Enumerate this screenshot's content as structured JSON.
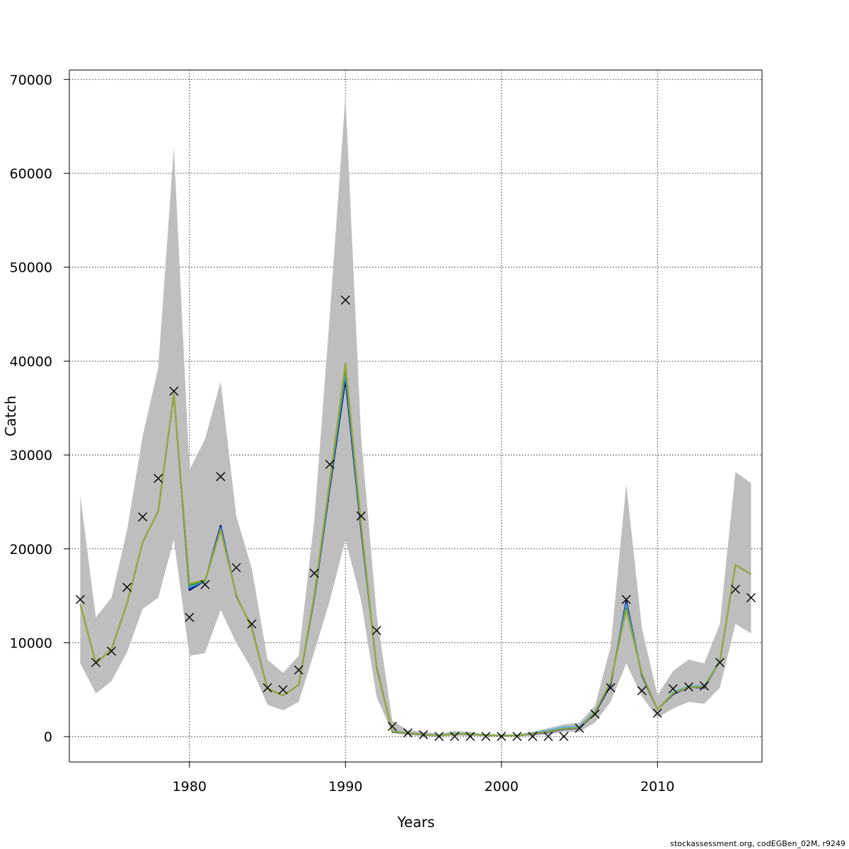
{
  "footer": "stockassessment.org, codEGBen_02M, r9249",
  "colors": {
    "band": "#bebebe",
    "observed_marker": "#000000",
    "grid": "#000000",
    "series": [
      "#000080",
      "#1f78b4",
      "#56b4e9",
      "#2e8b57",
      "#7cae00",
      "#9aa83b"
    ]
  },
  "chart_data": {
    "type": "line",
    "title": "",
    "xlabel": "Years",
    "ylabel": "Catch",
    "xlim": [
      1972.3,
      2016.7
    ],
    "ylim": [
      -2700,
      71000
    ],
    "xticks": [
      1980,
      1990,
      2000,
      2010
    ],
    "yticks": [
      0,
      10000,
      20000,
      30000,
      40000,
      50000,
      60000,
      70000
    ],
    "grid": true,
    "x": [
      1973,
      1974,
      1975,
      1976,
      1977,
      1978,
      1979,
      1980,
      1981,
      1982,
      1983,
      1984,
      1985,
      1986,
      1987,
      1988,
      1989,
      1990,
      1991,
      1992,
      1993,
      1994,
      1995,
      1996,
      1997,
      1998,
      1999,
      2000,
      2001,
      2002,
      2003,
      2004,
      2005,
      2006,
      2007,
      2008,
      2009,
      2010,
      2011,
      2012,
      2013,
      2014,
      2015,
      2016
    ],
    "band": {
      "lower": [
        7800,
        4600,
        5900,
        9000,
        13600,
        14800,
        21000,
        8600,
        8900,
        13500,
        10000,
        7200,
        3400,
        2800,
        3700,
        9000,
        14500,
        21000,
        14500,
        4200,
        400,
        150,
        80,
        30,
        100,
        80,
        30,
        30,
        30,
        100,
        200,
        500,
        500,
        1500,
        3700,
        7800,
        4300,
        2000,
        3000,
        3700,
        3500,
        5200,
        12000,
        11000
      ],
      "upper": [
        25700,
        12700,
        14800,
        22000,
        32000,
        39300,
        62800,
        28400,
        31700,
        37800,
        23500,
        17900,
        8200,
        6800,
        8600,
        23000,
        45000,
        68300,
        32000,
        13000,
        1700,
        700,
        500,
        300,
        600,
        500,
        200,
        200,
        200,
        500,
        900,
        1300,
        1500,
        3300,
        9600,
        26900,
        11600,
        4400,
        7000,
        8200,
        7800,
        12000,
        28200,
        27000
      ]
    },
    "observed": [
      14600,
      7900,
      9100,
      15900,
      23400,
      27500,
      36800,
      12700,
      16200,
      27700,
      18000,
      12000,
      5200,
      5000,
      7100,
      17400,
      29000,
      46500,
      23500,
      11300,
      1100,
      400,
      200,
      20,
      20,
      20,
      20,
      20,
      20,
      20,
      20,
      20,
      900,
      2400,
      5200,
      14600,
      4900,
      2500,
      5100,
      5300,
      5400,
      7900,
      15700,
      14800
    ],
    "series": [
      {
        "values": [
          14100,
          7800,
          9300,
          14200,
          20700,
          24000,
          36500,
          15600,
          16600,
          22500,
          15000,
          11600,
          5100,
          4400,
          5500,
          14700,
          26500,
          38000,
          22000,
          7400,
          500,
          350,
          200,
          100,
          300,
          250,
          150,
          100,
          100,
          300,
          500,
          800,
          900,
          2500,
          5500,
          14500,
          6500,
          2900,
          4500,
          5300,
          5200,
          8000,
          18300,
          17300
        ]
      },
      {
        "values": [
          14100,
          7800,
          9300,
          14200,
          20700,
          24000,
          36500,
          15800,
          16600,
          22300,
          15100,
          11500,
          5100,
          4400,
          5500,
          14800,
          26800,
          38500,
          22300,
          7300,
          550,
          380,
          230,
          120,
          330,
          270,
          170,
          110,
          120,
          350,
          600,
          900,
          1000,
          2600,
          5700,
          14200,
          6600,
          2900,
          4600,
          5300,
          5300,
          8000,
          18300,
          17300
        ]
      },
      {
        "values": [
          14100,
          7800,
          9300,
          14200,
          20700,
          24000,
          36500,
          16000,
          16600,
          22100,
          15100,
          11500,
          5100,
          4400,
          5500,
          14900,
          27000,
          39000,
          22500,
          7300,
          600,
          400,
          250,
          150,
          350,
          300,
          200,
          150,
          150,
          400,
          700,
          1000,
          1100,
          2700,
          5800,
          14000,
          6700,
          2900,
          4700,
          5400,
          5400,
          8100,
          18300,
          17300
        ]
      },
      {
        "values": [
          14100,
          7800,
          9300,
          14200,
          20700,
          24000,
          36500,
          16100,
          16600,
          22000,
          15100,
          11500,
          5100,
          4400,
          5500,
          15000,
          27100,
          39300,
          22600,
          7300,
          550,
          370,
          220,
          110,
          310,
          260,
          160,
          110,
          110,
          330,
          550,
          850,
          950,
          2600,
          5800,
          13700,
          6700,
          2900,
          4600,
          5300,
          5300,
          8000,
          18300,
          17300
        ]
      },
      {
        "values": [
          14100,
          7800,
          9300,
          14200,
          20700,
          24000,
          36500,
          16200,
          16700,
          22000,
          15100,
          11500,
          5100,
          4400,
          5500,
          15000,
          27300,
          39600,
          22700,
          7300,
          550,
          370,
          220,
          110,
          310,
          260,
          160,
          110,
          110,
          330,
          550,
          850,
          950,
          2600,
          5800,
          13500,
          6700,
          2900,
          4600,
          5300,
          5300,
          8000,
          18300,
          17300
        ]
      },
      {
        "values": [
          14100,
          7800,
          9300,
          14200,
          20700,
          24000,
          36500,
          16300,
          16700,
          22000,
          15100,
          11500,
          5100,
          4400,
          5500,
          15100,
          27400,
          39800,
          22800,
          7300,
          550,
          370,
          220,
          110,
          310,
          260,
          160,
          110,
          110,
          330,
          550,
          850,
          950,
          2600,
          5800,
          13400,
          6700,
          2900,
          4600,
          5300,
          5300,
          8000,
          18300,
          17300
        ]
      }
    ]
  }
}
